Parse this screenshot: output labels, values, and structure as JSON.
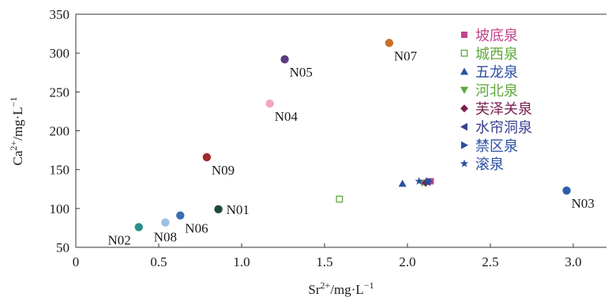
{
  "chart_data": {
    "type": "scatter",
    "xlabel": {
      "base": "Sr",
      "sup": "2+",
      "rest": "/mg·L",
      "rest_sup": "−1"
    },
    "ylabel": {
      "base": "Ca",
      "sup": "2+",
      "rest": "/mg·L",
      "rest_sup": "−1"
    },
    "xlim": [
      0,
      3.2
    ],
    "ylim": [
      50,
      350
    ],
    "x_ticks": [
      0,
      0.5,
      1.0,
      1.5,
      2.0,
      2.5,
      3.0
    ],
    "x_tick_labels": [
      "0",
      "0.5",
      "1.0",
      "1.5",
      "2.0",
      "2.5",
      "3.0"
    ],
    "y_ticks": [
      50,
      100,
      150,
      200,
      250,
      300,
      350
    ],
    "y_tick_labels": [
      "50",
      "100",
      "150",
      "200",
      "250",
      "300",
      "350"
    ],
    "grid": false,
    "legend_position": "right",
    "legend": [
      {
        "name": "坡底泉",
        "marker": "square",
        "color": "#c0448a"
      },
      {
        "name": "城西泉",
        "marker": "square-open",
        "color": "#5fa83a"
      },
      {
        "name": "五龙泉",
        "marker": "triangle-up",
        "color": "#2b4fa0"
      },
      {
        "name": "河北泉",
        "marker": "triangle-down",
        "color": "#5fa83a"
      },
      {
        "name": "芙泽关泉",
        "marker": "diamond",
        "color": "#7a1f4e"
      },
      {
        "name": "水帘洞泉",
        "marker": "triangle-left",
        "color": "#3b3f8f"
      },
      {
        "name": "禁区泉",
        "marker": "triangle-right",
        "color": "#2b4fa0"
      },
      {
        "name": "滚泉",
        "marker": "star",
        "color": "#2b4fa0"
      }
    ],
    "series": [
      {
        "name": "坡底泉",
        "marker": "square",
        "color": "#c0448a",
        "points": [
          {
            "x": 2.14,
            "y": 135
          }
        ]
      },
      {
        "name": "城西泉",
        "marker": "square-open",
        "color": "#5fa83a",
        "points": [
          {
            "x": 1.59,
            "y": 112
          }
        ]
      },
      {
        "name": "五龙泉",
        "marker": "triangle-up",
        "color": "#2b4fa0",
        "points": [
          {
            "x": 1.97,
            "y": 132
          }
        ]
      },
      {
        "name": "河北泉",
        "marker": "triangle-down",
        "color": "#5fa83a",
        "points": [
          {
            "x": 2.09,
            "y": 133
          }
        ]
      },
      {
        "name": "芙泽关泉",
        "marker": "diamond",
        "color": "#7a1f4e",
        "points": [
          {
            "x": 2.11,
            "y": 133
          }
        ]
      },
      {
        "name": "水帘洞泉",
        "marker": "triangle-left",
        "color": "#3b3f8f",
        "points": [
          {
            "x": 2.12,
            "y": 134
          }
        ]
      },
      {
        "name": "禁区泉",
        "marker": "triangle-right",
        "color": "#2b4fa0",
        "points": [
          {
            "x": 2.13,
            "y": 135
          }
        ]
      },
      {
        "name": "滚泉",
        "marker": "star",
        "color": "#2b4fa0",
        "points": [
          {
            "x": 2.07,
            "y": 135
          }
        ]
      }
    ],
    "labeled_points": [
      {
        "label": "N01",
        "x": 0.86,
        "y": 99,
        "color": "#1f4a3c",
        "label_side": "right"
      },
      {
        "label": "N02",
        "x": 0.38,
        "y": 76,
        "color": "#2a8f8a",
        "label_side": "below-left"
      },
      {
        "label": "N03",
        "x": 2.96,
        "y": 123,
        "color": "#2b5fa8",
        "label_side": "below-right"
      },
      {
        "label": "N04",
        "x": 1.17,
        "y": 235,
        "color": "#f0a8b8",
        "label_side": "below-right"
      },
      {
        "label": "N05",
        "x": 1.26,
        "y": 292,
        "color": "#5a3a80",
        "label_side": "below-right"
      },
      {
        "label": "N06",
        "x": 0.63,
        "y": 91,
        "color": "#3a6fb0",
        "label_side": "below-right"
      },
      {
        "label": "N07",
        "x": 1.89,
        "y": 313,
        "color": "#c8702a",
        "label_side": "below-right"
      },
      {
        "label": "N08",
        "x": 0.54,
        "y": 82,
        "color": "#9cc0e0",
        "label_side": "below"
      },
      {
        "label": "N09",
        "x": 0.79,
        "y": 166,
        "color": "#a02a2a",
        "label_side": "below-right"
      }
    ]
  }
}
